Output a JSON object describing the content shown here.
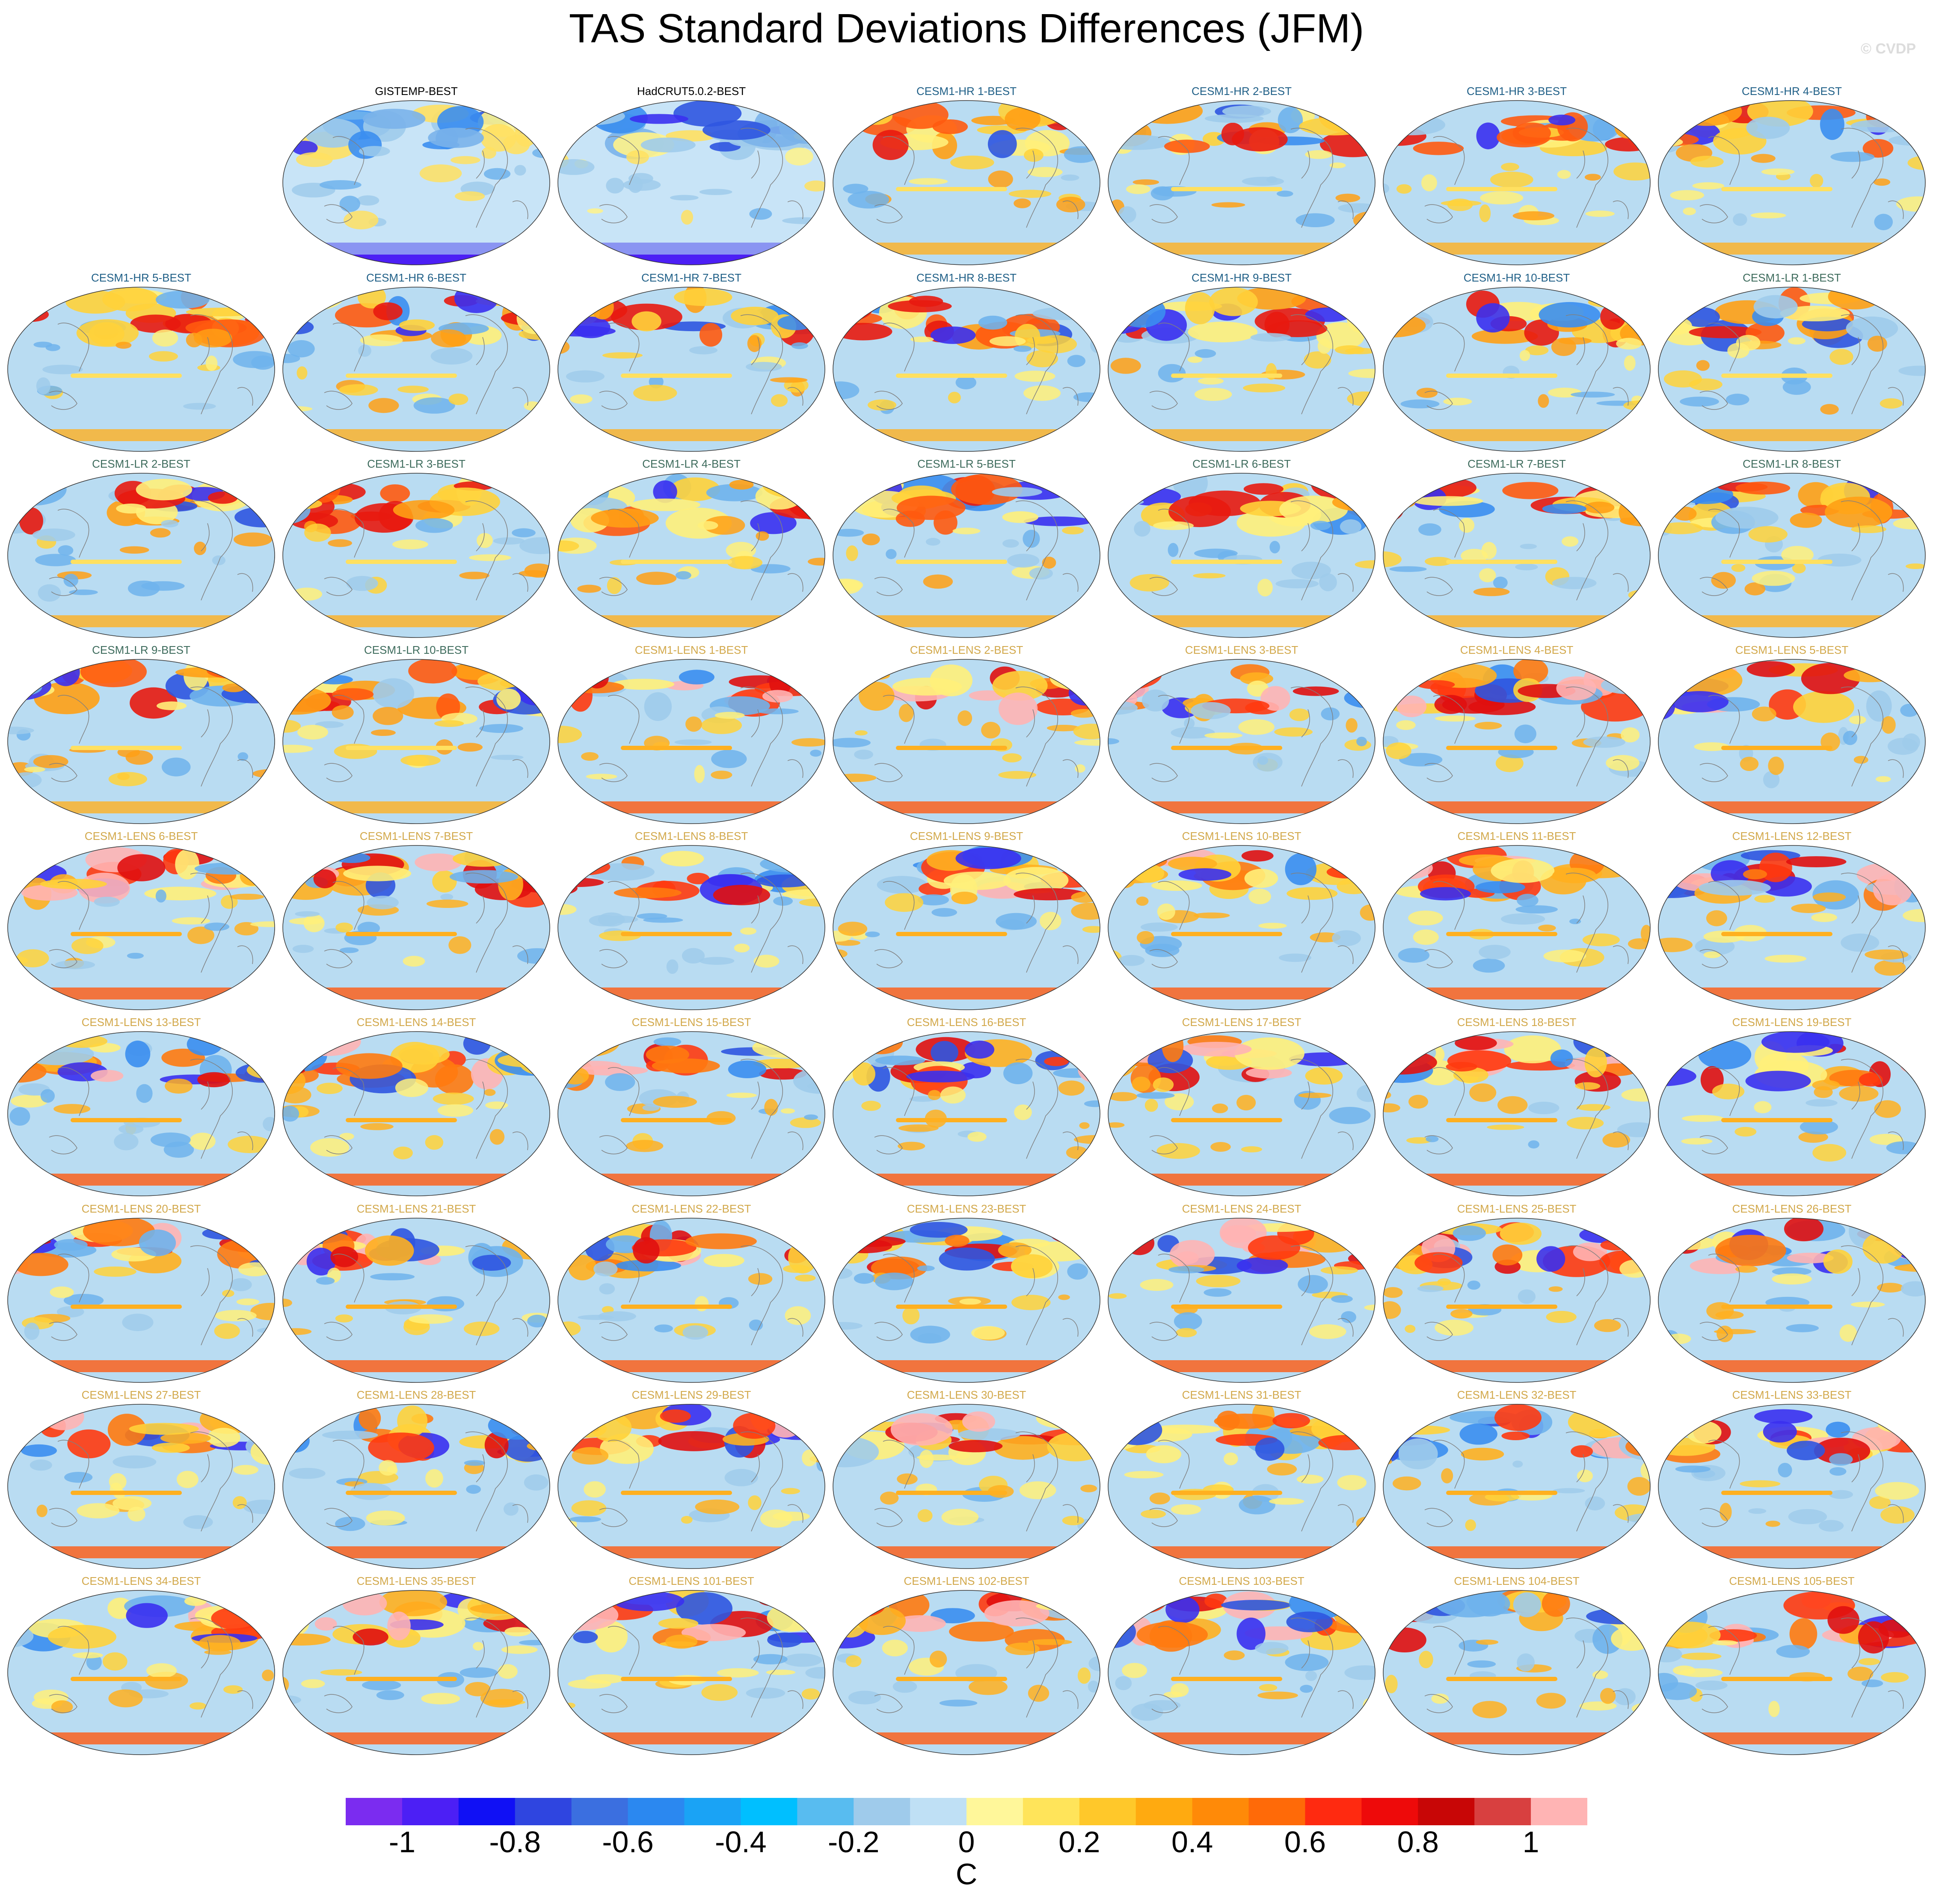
{
  "title": "TAS Standard Deviations Differences (JFM)",
  "watermark": "© CVDP",
  "panels": [
    {
      "label": "GISTEMP-BEST",
      "group": "obs"
    },
    {
      "label": "HadCRUT5.0.2-BEST",
      "group": "obs"
    },
    {
      "label": "CESM1-HR 1-BEST",
      "group": "hr"
    },
    {
      "label": "CESM1-HR 2-BEST",
      "group": "hr"
    },
    {
      "label": "CESM1-HR 3-BEST",
      "group": "hr"
    },
    {
      "label": "CESM1-HR 4-BEST",
      "group": "hr"
    },
    {
      "label": "CESM1-HR 5-BEST",
      "group": "hr"
    },
    {
      "label": "CESM1-HR 6-BEST",
      "group": "hr"
    },
    {
      "label": "CESM1-HR 7-BEST",
      "group": "hr"
    },
    {
      "label": "CESM1-HR 8-BEST",
      "group": "hr"
    },
    {
      "label": "CESM1-HR 9-BEST",
      "group": "hr"
    },
    {
      "label": "CESM1-HR 10-BEST",
      "group": "hr"
    },
    {
      "label": "CESM1-LR 1-BEST",
      "group": "lr"
    },
    {
      "label": "CESM1-LR 2-BEST",
      "group": "lr"
    },
    {
      "label": "CESM1-LR 3-BEST",
      "group": "lr"
    },
    {
      "label": "CESM1-LR 4-BEST",
      "group": "lr"
    },
    {
      "label": "CESM1-LR 5-BEST",
      "group": "lr"
    },
    {
      "label": "CESM1-LR 6-BEST",
      "group": "lr"
    },
    {
      "label": "CESM1-LR 7-BEST",
      "group": "lr"
    },
    {
      "label": "CESM1-LR 8-BEST",
      "group": "lr"
    },
    {
      "label": "CESM1-LR 9-BEST",
      "group": "lr"
    },
    {
      "label": "CESM1-LR 10-BEST",
      "group": "lr"
    },
    {
      "label": "CESM1-LENS 1-BEST",
      "group": "lens"
    },
    {
      "label": "CESM1-LENS 2-BEST",
      "group": "lens"
    },
    {
      "label": "CESM1-LENS 3-BEST",
      "group": "lens"
    },
    {
      "label": "CESM1-LENS 4-BEST",
      "group": "lens"
    },
    {
      "label": "CESM1-LENS 5-BEST",
      "group": "lens"
    },
    {
      "label": "CESM1-LENS 6-BEST",
      "group": "lens"
    },
    {
      "label": "CESM1-LENS 7-BEST",
      "group": "lens"
    },
    {
      "label": "CESM1-LENS 8-BEST",
      "group": "lens"
    },
    {
      "label": "CESM1-LENS 9-BEST",
      "group": "lens"
    },
    {
      "label": "CESM1-LENS 10-BEST",
      "group": "lens"
    },
    {
      "label": "CESM1-LENS 11-BEST",
      "group": "lens"
    },
    {
      "label": "CESM1-LENS 12-BEST",
      "group": "lens"
    },
    {
      "label": "CESM1-LENS 13-BEST",
      "group": "lens"
    },
    {
      "label": "CESM1-LENS 14-BEST",
      "group": "lens"
    },
    {
      "label": "CESM1-LENS 15-BEST",
      "group": "lens"
    },
    {
      "label": "CESM1-LENS 16-BEST",
      "group": "lens"
    },
    {
      "label": "CESM1-LENS 17-BEST",
      "group": "lens"
    },
    {
      "label": "CESM1-LENS 18-BEST",
      "group": "lens"
    },
    {
      "label": "CESM1-LENS 19-BEST",
      "group": "lens"
    },
    {
      "label": "CESM1-LENS 20-BEST",
      "group": "lens"
    },
    {
      "label": "CESM1-LENS 21-BEST",
      "group": "lens"
    },
    {
      "label": "CESM1-LENS 22-BEST",
      "group": "lens"
    },
    {
      "label": "CESM1-LENS 23-BEST",
      "group": "lens"
    },
    {
      "label": "CESM1-LENS 24-BEST",
      "group": "lens"
    },
    {
      "label": "CESM1-LENS 25-BEST",
      "group": "lens"
    },
    {
      "label": "CESM1-LENS 26-BEST",
      "group": "lens"
    },
    {
      "label": "CESM1-LENS 27-BEST",
      "group": "lens"
    },
    {
      "label": "CESM1-LENS 28-BEST",
      "group": "lens"
    },
    {
      "label": "CESM1-LENS 29-BEST",
      "group": "lens"
    },
    {
      "label": "CESM1-LENS 30-BEST",
      "group": "lens"
    },
    {
      "label": "CESM1-LENS 31-BEST",
      "group": "lens"
    },
    {
      "label": "CESM1-LENS 32-BEST",
      "group": "lens"
    },
    {
      "label": "CESM1-LENS 33-BEST",
      "group": "lens"
    },
    {
      "label": "CESM1-LENS 34-BEST",
      "group": "lens"
    },
    {
      "label": "CESM1-LENS 35-BEST",
      "group": "lens"
    },
    {
      "label": "CESM1-LENS 101-BEST",
      "group": "lens"
    },
    {
      "label": "CESM1-LENS 102-BEST",
      "group": "lens"
    },
    {
      "label": "CESM1-LENS 103-BEST",
      "group": "lens"
    },
    {
      "label": "CESM1-LENS 104-BEST",
      "group": "lens"
    },
    {
      "label": "CESM1-LENS 105-BEST",
      "group": "lens"
    }
  ],
  "group_colors": {
    "obs": "#000000",
    "hr": "#1f5f87",
    "lr": "#3d6b5c",
    "lens": "#d2a84a"
  },
  "colorbar": {
    "unit": "C",
    "colors": [
      "#7b2cf0",
      "#4c1ff5",
      "#1010f5",
      "#2f45e0",
      "#3b6fe0",
      "#2b88f0",
      "#1aa3f5",
      "#00bfff",
      "#58bcf0",
      "#9fcbeb",
      "#bfe0f5",
      "#fff79a",
      "#ffe45a",
      "#ffc82a",
      "#ffaa10",
      "#ff8a08",
      "#ff6a08",
      "#ff2a10",
      "#ee0a0a",
      "#c80606",
      "#d84040",
      "#ffb4b4"
    ],
    "tick_labels": [
      "-1",
      "-0.8",
      "-0.6",
      "-0.4",
      "-0.2",
      "0",
      "0.2",
      "0.4",
      "0.6",
      "0.8",
      "1"
    ]
  }
}
